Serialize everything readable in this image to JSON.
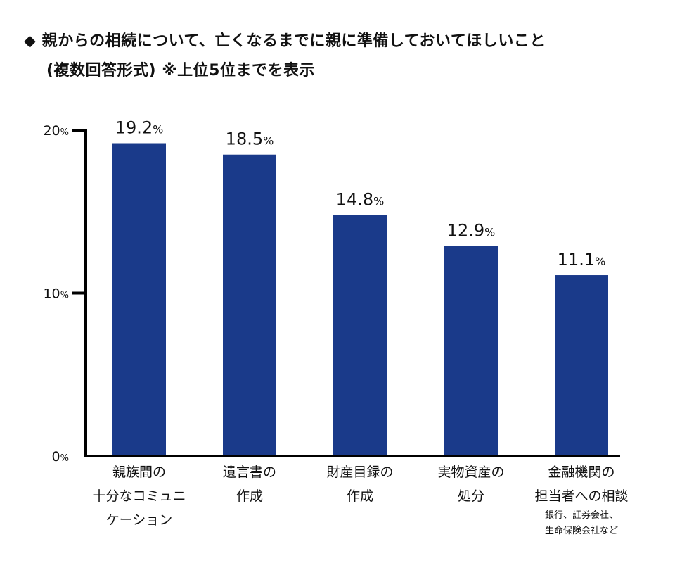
{
  "title_line1": "◆ 親からの相続について、亡くなるまでに親に準備しておいてほしいこと",
  "title_line2": "(複数回答形式) ※上位5位までを表示",
  "chart_data": {
    "type": "bar",
    "title": "親からの相続について、亡くなるまでに親に準備しておいてほしいこと (複数回答形式) ※上位5位までを表示",
    "categories": [
      [
        "親族間の",
        "十分なコミュニ",
        "ケーション"
      ],
      [
        "遺言書の",
        "作成"
      ],
      [
        "財産目録の",
        "作成"
      ],
      [
        "実物資産の",
        "処分"
      ],
      [
        "金融機関の",
        "担当者への相談"
      ]
    ],
    "category_notes": [
      null,
      null,
      null,
      null,
      [
        "銀行、証券会社、",
        "生命保険会社など"
      ]
    ],
    "values": [
      19.2,
      18.5,
      14.8,
      12.9,
      11.1
    ],
    "value_labels": [
      "19.2",
      "18.5",
      "14.8",
      "12.9",
      "11.1"
    ],
    "unit": "%",
    "yticks": [
      0,
      10,
      20
    ],
    "ytick_labels": [
      "0",
      "10",
      "20"
    ],
    "ylim": [
      0,
      20
    ],
    "xlabel": "",
    "ylabel": "",
    "grid": false,
    "bar_color": "#1a3a8a"
  }
}
